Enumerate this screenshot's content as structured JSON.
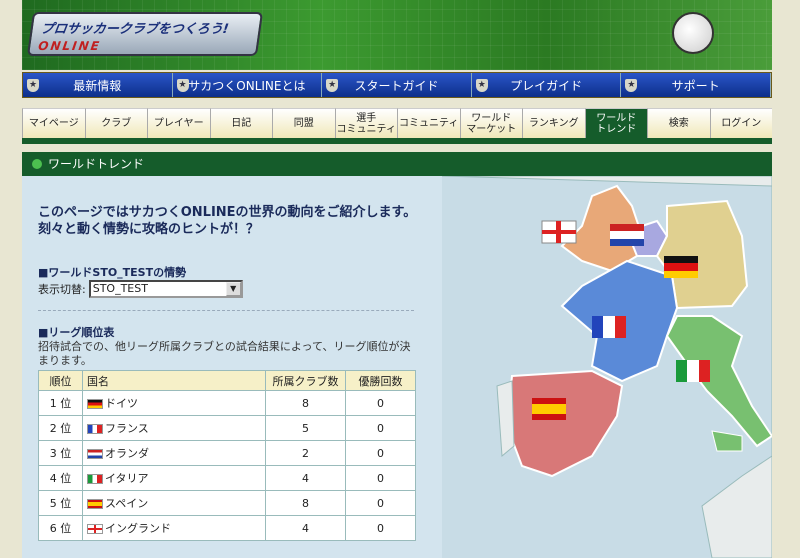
{
  "banner": {
    "logo_text": "プロサッカークラブをつくろう!",
    "logo_sub": "ONLINE"
  },
  "nav_main": [
    "最新情報",
    "サカつくONLINEとは",
    "スタートガイド",
    "プレイガイド",
    "サポート"
  ],
  "nav_sub": [
    {
      "label": "マイページ"
    },
    {
      "label": "クラブ"
    },
    {
      "label": "プレイヤー"
    },
    {
      "label": "日記"
    },
    {
      "label": "同盟"
    },
    {
      "label": "選手\nコミュニティ"
    },
    {
      "label": "コミュニティ"
    },
    {
      "label": "ワールド\nマーケット"
    },
    {
      "label": "ランキング"
    },
    {
      "label": "ワールド\nトレンド",
      "active": true
    },
    {
      "label": "検索"
    },
    {
      "label": "ログイン"
    }
  ],
  "section_title": "ワールドトレンド",
  "intro": {
    "line1": "このページではサカつくONLINEの世界の動向をご紹介します。",
    "line2": "刻々と動く情勢に攻略のヒントが！？"
  },
  "world": {
    "heading": "■ワールドSTO_TESTの情勢",
    "switch_label": "表示切替:",
    "selected": "STO_TEST"
  },
  "league": {
    "heading": "■リーグ順位表",
    "description": "招待試合での、他リーグ所属クラブとの試合結果によって、リーグ順位が決まります。",
    "columns": [
      "順位",
      "国名",
      "所属クラブ数",
      "優勝回数"
    ],
    "rows": [
      {
        "rank": "1 位",
        "country": "ドイツ",
        "flag": "germany",
        "clubs": "8",
        "wins": "0"
      },
      {
        "rank": "2 位",
        "country": "フランス",
        "flag": "france",
        "clubs": "5",
        "wins": "0"
      },
      {
        "rank": "3 位",
        "country": "オランダ",
        "flag": "netherlands",
        "clubs": "2",
        "wins": "0"
      },
      {
        "rank": "4 位",
        "country": "イタリア",
        "flag": "italy",
        "clubs": "4",
        "wins": "0"
      },
      {
        "rank": "5 位",
        "country": "スペイン",
        "flag": "spain",
        "clubs": "8",
        "wins": "0"
      },
      {
        "rank": "6 位",
        "country": "イングランド",
        "flag": "england",
        "clubs": "4",
        "wins": "0"
      }
    ]
  },
  "colors": {
    "green": "#155c2b",
    "nav_blue": "#0d2f8a",
    "content_bg": "#d3e4ee"
  }
}
